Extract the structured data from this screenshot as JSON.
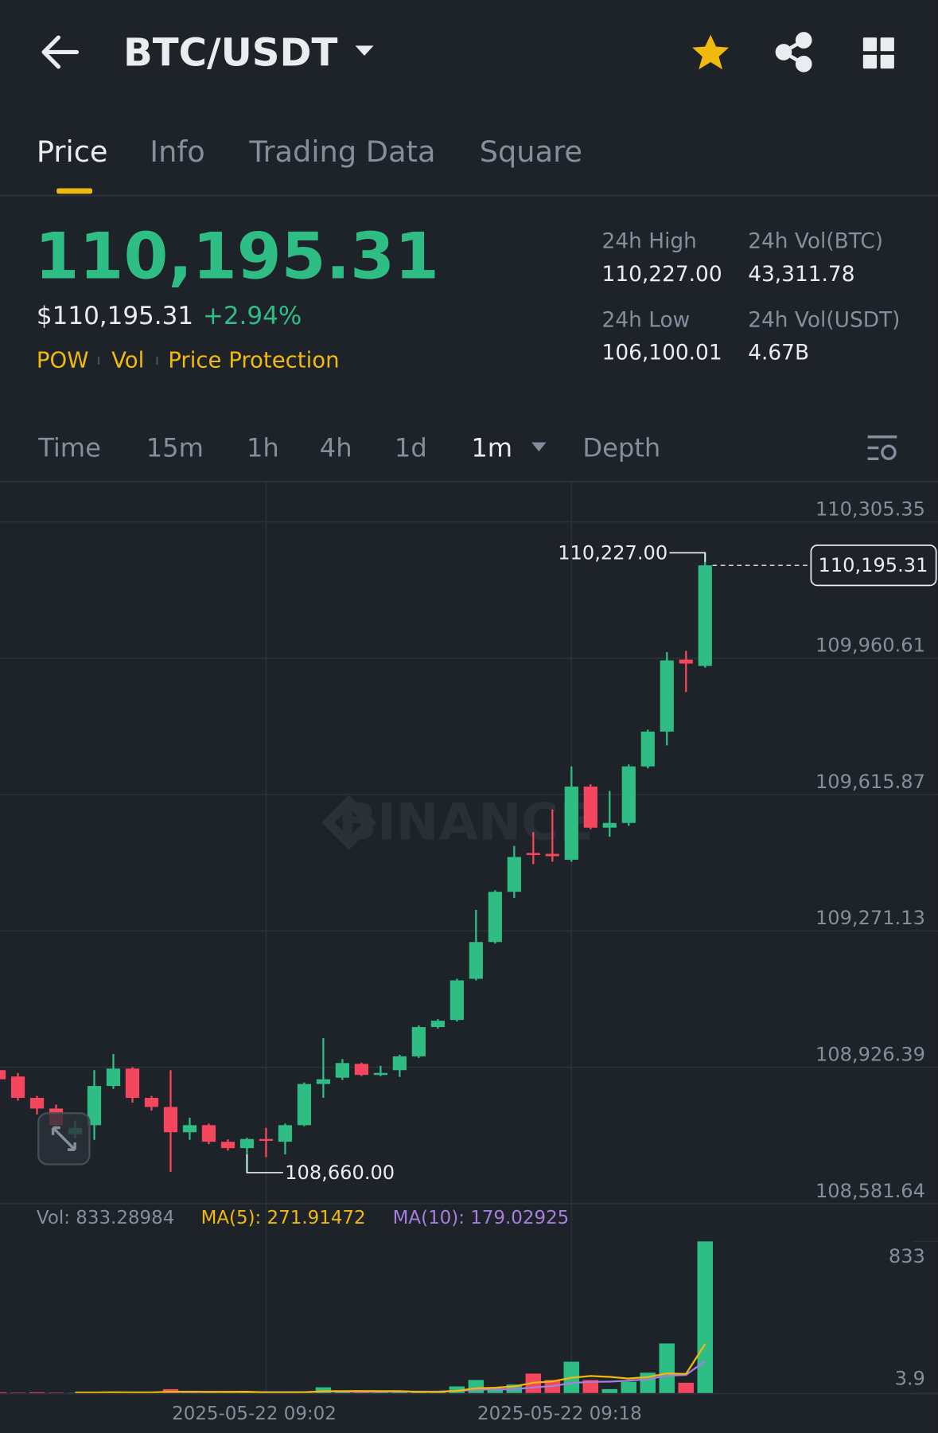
{
  "header": {
    "pair": "BTC/USDT"
  },
  "tabs": [
    "Price",
    "Info",
    "Trading Data",
    "Square"
  ],
  "ticker": {
    "price": "110,195.31",
    "usd_price": "$110,195.31",
    "change": "+2.94%",
    "tags": [
      "POW",
      "Vol",
      "Price Protection"
    ]
  },
  "stats": [
    {
      "label": "24h High",
      "value": "110,227.00"
    },
    {
      "label": "24h Vol(BTC)",
      "value": "43,311.78"
    },
    {
      "label": "24h Low",
      "value": "106,100.01"
    },
    {
      "label": "24h Vol(USDT)",
      "value": "4.67B"
    }
  ],
  "intervals": [
    "Time",
    "15m",
    "1h",
    "4h",
    "1d",
    "1m",
    "Depth"
  ],
  "watermark": "BINANCE",
  "chart_data": {
    "type": "candlestick",
    "up_color": "#2ebd85",
    "down_color": "#f6465d",
    "categories": [
      null,
      null,
      null,
      null,
      null,
      null,
      null,
      null,
      null,
      null,
      null,
      null,
      null,
      null,
      "2025-05-22 09:02",
      null,
      null,
      null,
      null,
      null,
      null,
      null,
      null,
      null,
      null,
      null,
      null,
      null,
      null,
      null,
      "2025-05-22 09:18",
      null,
      null,
      null,
      null,
      null,
      null,
      null
    ],
    "open": [
      108919,
      108903,
      108849,
      108822,
      108757,
      108780,
      108879,
      108923,
      108849,
      108826,
      108762,
      108780,
      108738,
      108722,
      108745,
      108738,
      108780,
      108884,
      108900,
      108935,
      108907,
      108919,
      108954,
      109028,
      109046,
      109150,
      109243,
      109370,
      109468,
      109466,
      109451,
      109636,
      109532,
      109544,
      109687,
      109775,
      109957,
      109941
    ],
    "high": [
      108932,
      108912,
      108854,
      108832,
      108792,
      108919,
      108960,
      108927,
      108854,
      108919,
      108799,
      108784,
      108744,
      108748,
      108773,
      108784,
      108888,
      109000,
      108947,
      108938,
      108930,
      108958,
      109032,
      109048,
      109150,
      109324,
      109374,
      109486,
      109521,
      109578,
      109687,
      109642,
      109625,
      109692,
      109780,
      109976,
      109979,
      110227
    ],
    "low": [
      108892,
      108842,
      108807,
      108772,
      108747,
      108743,
      108872,
      108837,
      108817,
      108662,
      108743,
      108732,
      108716,
      108660,
      108699,
      108706,
      108777,
      108849,
      108894,
      108904,
      108904,
      108902,
      108950,
      109024,
      109042,
      109146,
      109239,
      109354,
      109440,
      109446,
      109446,
      109528,
      109509,
      109537,
      109682,
      109740,
      109875,
      109937
    ],
    "close": [
      108896,
      108849,
      108822,
      108780,
      108773,
      108879,
      108923,
      108849,
      108826,
      108762,
      108780,
      108738,
      108722,
      108745,
      108741,
      108780,
      108884,
      108896,
      108937,
      108907,
      108912,
      108954,
      109028,
      109044,
      109146,
      109243,
      109370,
      109458,
      109463,
      109460,
      109636,
      109532,
      109544,
      109687,
      109775,
      109955,
      109947,
      110195.31
    ],
    "ylim": [
      108581.64,
      110404.7
    ],
    "yticks": [
      {
        "value": 110305.35,
        "label": "110,305.35"
      },
      {
        "value": 109960.61,
        "label": "109,960.61"
      },
      {
        "value": 109615.87,
        "label": "109,615.87"
      },
      {
        "value": 109271.13,
        "label": "109,271.13"
      },
      {
        "value": 108926.39,
        "label": "108,926.39"
      },
      {
        "value": 108581.64,
        "label": "108,581.64"
      }
    ],
    "high_marker": {
      "value": 110227,
      "label": "110,227.00"
    },
    "low_marker": {
      "value": 108660,
      "label": "108,660.00"
    },
    "last_price": {
      "value": 110195.31,
      "label": "110,195.31"
    },
    "volume": {
      "values": [
        8,
        6,
        8,
        6,
        5,
        8,
        10,
        6,
        6,
        25,
        8,
        6,
        6,
        8,
        6,
        8,
        10,
        35,
        12,
        8,
        6,
        10,
        12,
        10,
        40,
        75,
        25,
        50,
        110,
        75,
        175,
        75,
        25,
        65,
        115,
        275,
        60,
        833.28984
      ],
      "ma5": [
        null,
        null,
        null,
        null,
        6.6,
        6.6,
        7.4,
        7,
        7,
        11,
        11,
        10.2,
        10.2,
        10.6,
        6.8,
        6.8,
        7.6,
        13.4,
        14.2,
        14.6,
        14.2,
        14.2,
        9.6,
        9.2,
        15.6,
        29.4,
        32.4,
        40,
        60,
        67,
        87,
        97,
        92,
        83,
        91,
        111,
        108,
        271.91472
      ],
      "ma10": [
        null,
        null,
        null,
        null,
        null,
        null,
        null,
        null,
        null,
        8.8,
        8.8,
        8.8,
        8.6,
        8.8,
        8.9,
        8.9,
        8.9,
        11.8,
        12.4,
        10.7,
        10.5,
        10.9,
        11.5,
        11.7,
        15.1,
        21.8,
        23.3,
        24.8,
        34.6,
        41.3,
        58.2,
        64.7,
        66,
        71.5,
        79,
        99,
        102.5,
        179.02925
      ],
      "ma5_color": "#f0b90b",
      "ma10_color": "#a57ede",
      "vol_label": "Vol: 833.28984",
      "ma5_label": "MA(5): 271.91472",
      "ma10_label": "MA(10): 179.02925",
      "ylim": [
        0,
        900
      ],
      "yticks": [
        833,
        3.9
      ]
    }
  }
}
